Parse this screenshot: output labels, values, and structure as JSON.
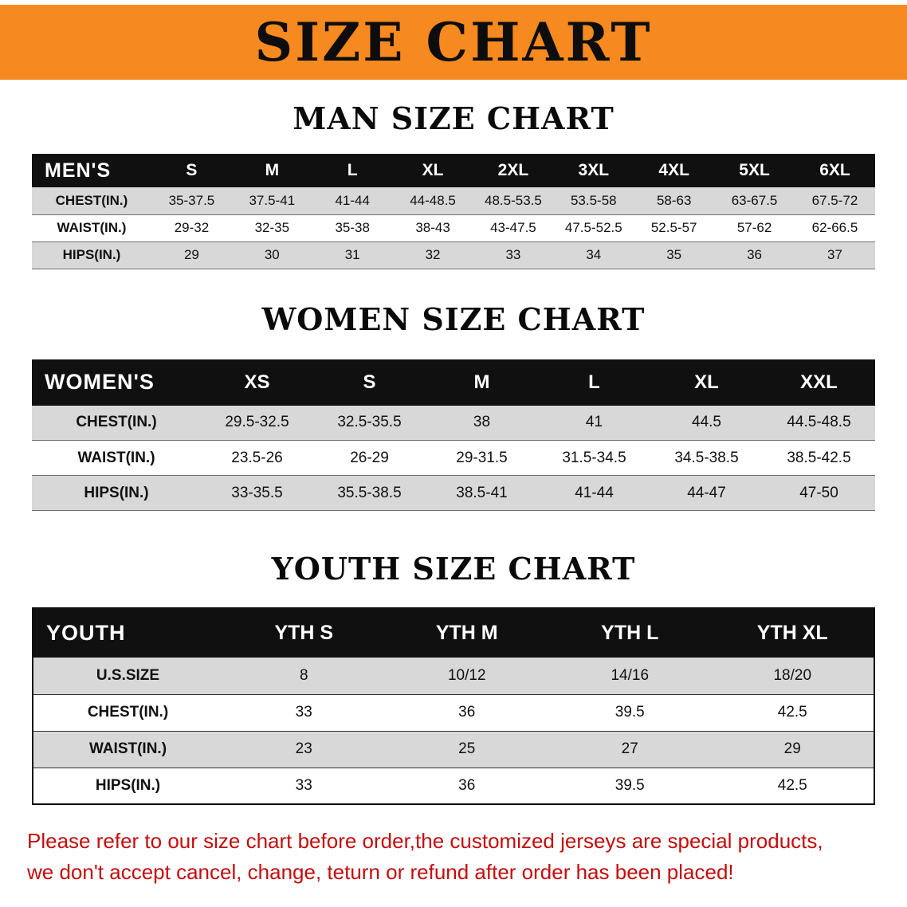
{
  "banner": {
    "title": "SIZE CHART"
  },
  "men": {
    "heading": "MAN SIZE CHART",
    "corner": "MEN'S",
    "columns": [
      "S",
      "M",
      "L",
      "XL",
      "2XL",
      "3XL",
      "4XL",
      "5XL",
      "6XL"
    ],
    "rows": [
      {
        "label": "CHEST(IN.)",
        "values": [
          "35-37.5",
          "37.5-41",
          "41-44",
          "44-48.5",
          "48.5-53.5",
          "53.5-58",
          "58-63",
          "63-67.5",
          "67.5-72"
        ]
      },
      {
        "label": "WAIST(IN.)",
        "values": [
          "29-32",
          "32-35",
          "35-38",
          "38-43",
          "43-47.5",
          "47.5-52.5",
          "52.5-57",
          "57-62",
          "62-66.5"
        ]
      },
      {
        "label": "HIPS(IN.)",
        "values": [
          "29",
          "30",
          "31",
          "32",
          "33",
          "34",
          "35",
          "36",
          "37"
        ]
      }
    ]
  },
  "women": {
    "heading": "WOMEN SIZE CHART",
    "corner": "WOMEN'S",
    "columns": [
      "XS",
      "S",
      "M",
      "L",
      "XL",
      "XXL"
    ],
    "rows": [
      {
        "label": "CHEST(IN.)",
        "values": [
          "29.5-32.5",
          "32.5-35.5",
          "38",
          "41",
          "44.5",
          "44.5-48.5"
        ]
      },
      {
        "label": "WAIST(IN.)",
        "values": [
          "23.5-26",
          "26-29",
          "29-31.5",
          "31.5-34.5",
          "34.5-38.5",
          "38.5-42.5"
        ]
      },
      {
        "label": "HIPS(IN.)",
        "values": [
          "33-35.5",
          "35.5-38.5",
          "38.5-41",
          "41-44",
          "44-47",
          "47-50"
        ]
      }
    ]
  },
  "youth": {
    "heading": "YOUTH SIZE CHART",
    "corner": "YOUTH",
    "columns": [
      "YTH S",
      "YTH M",
      "YTH L",
      "YTH XL"
    ],
    "rows": [
      {
        "label": "U.S.SIZE",
        "values": [
          "8",
          "10/12",
          "14/16",
          "18/20"
        ]
      },
      {
        "label": "CHEST(IN.)",
        "values": [
          "33",
          "36",
          "39.5",
          "42.5"
        ]
      },
      {
        "label": "WAIST(IN.)",
        "values": [
          "23",
          "25",
          "27",
          "29"
        ]
      },
      {
        "label": "HIPS(IN.)",
        "values": [
          "33",
          "36",
          "39.5",
          "42.5"
        ]
      }
    ]
  },
  "notice": {
    "line1": "Please refer to our size chart before order,the customized jerseys are special products,",
    "line2": "we don't accept cancel, change, teturn or refund after order has been placed!"
  },
  "colors": {
    "banner_bg": "#f6891f",
    "table_header_bg": "#101010",
    "stripe_bg": "#d8d8d8",
    "notice_text": "#c40d0d"
  }
}
